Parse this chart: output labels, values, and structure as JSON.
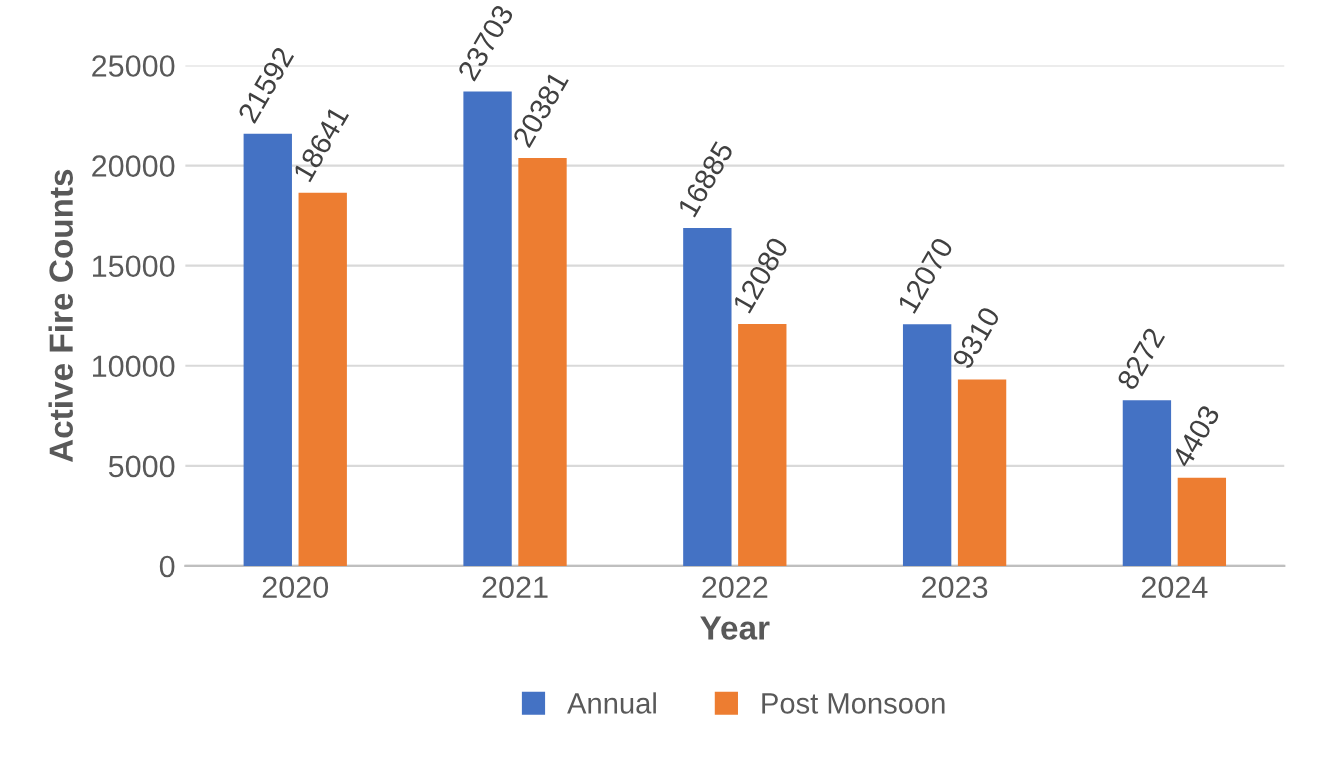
{
  "chart_data": {
    "type": "bar",
    "xlabel": "Year",
    "ylabel": "Active Fire Counts",
    "categories": [
      "2020",
      "2021",
      "2022",
      "2023",
      "2024"
    ],
    "series": [
      {
        "name": "Annual",
        "color": "#4472c4",
        "values": [
          21592,
          23703,
          16885,
          12070,
          8272
        ]
      },
      {
        "name": "Post Monsoon",
        "color": "#ed7d31",
        "values": [
          18641,
          20381,
          12080,
          9310,
          4403
        ]
      }
    ],
    "ylim": [
      0,
      25000
    ],
    "yticks": [
      0,
      5000,
      10000,
      15000,
      20000,
      25000
    ],
    "grid": "y",
    "legend": "bottom",
    "data_labels": true
  }
}
